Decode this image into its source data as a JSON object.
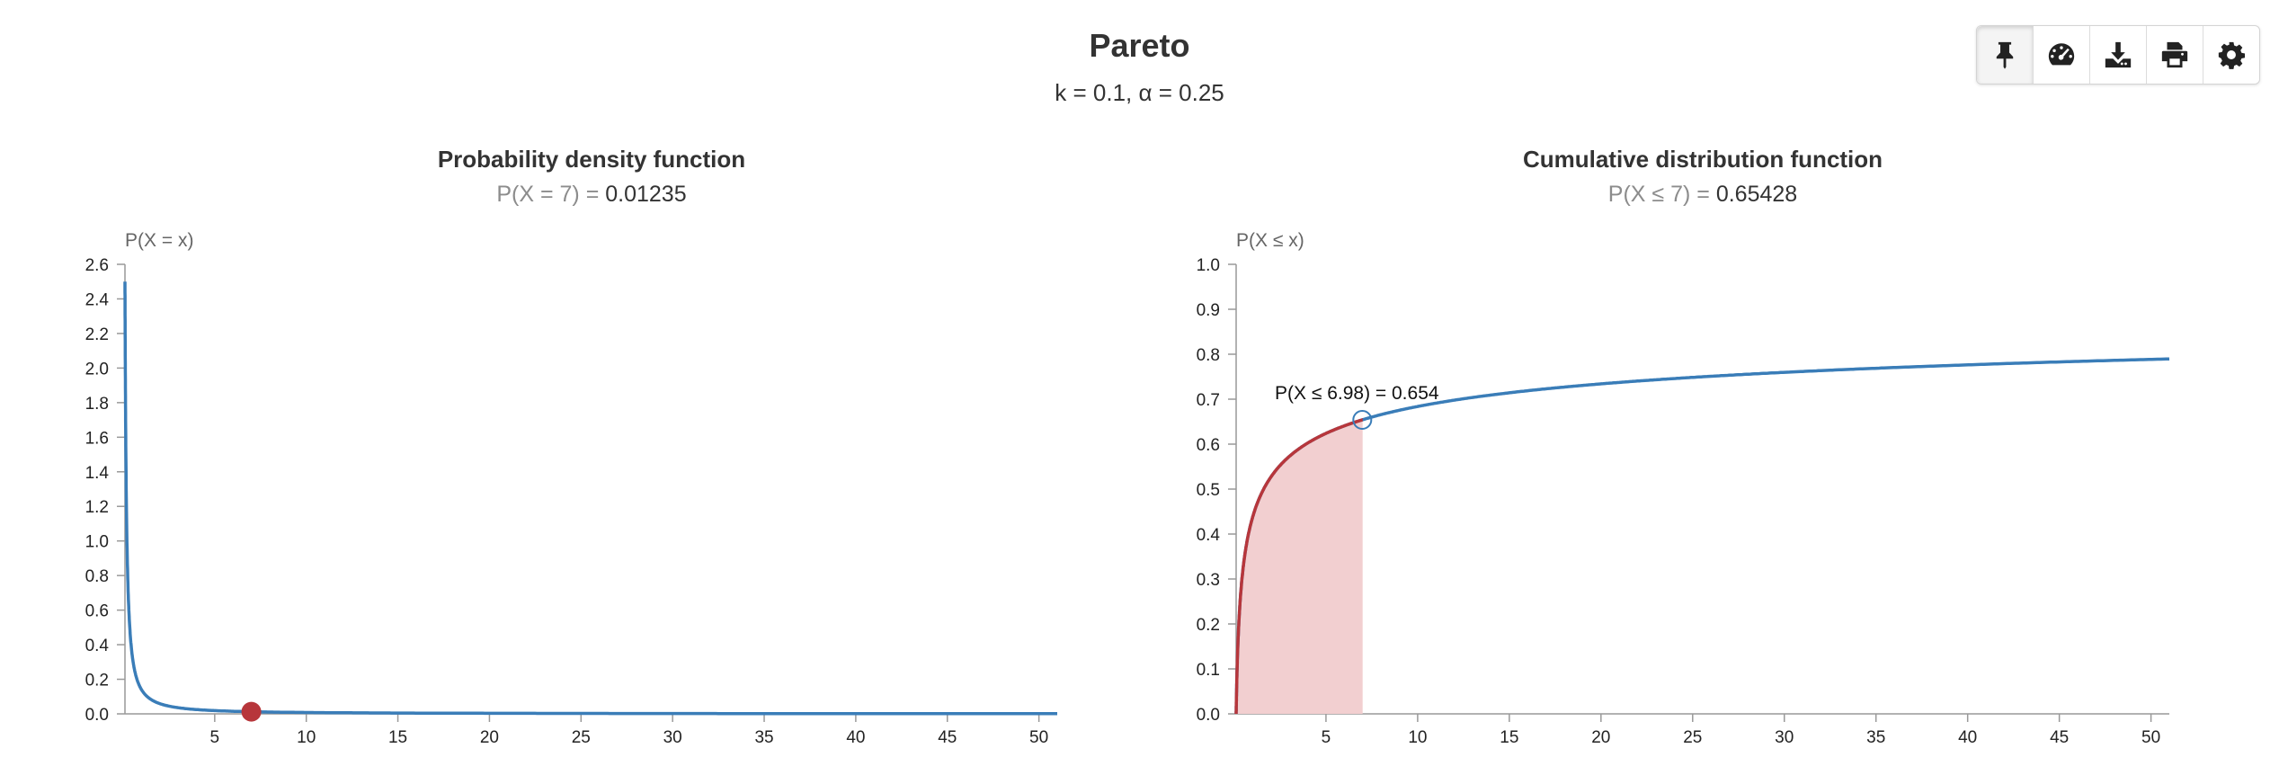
{
  "header": {
    "title": "Pareto",
    "subtitle": "k = 0.1, α = 0.25"
  },
  "toolbar": {
    "buttons": [
      {
        "icon": "pin-icon"
      },
      {
        "icon": "dashboard-icon"
      },
      {
        "icon": "download-icon"
      },
      {
        "icon": "print-icon"
      },
      {
        "icon": "gear-icon"
      }
    ]
  },
  "colors": {
    "curve": "#3a7db8",
    "highlight": "#b7363b",
    "fill": "#f2cfd0",
    "axis": "#999999",
    "text": "#333333",
    "muted": "#8c8c8c"
  },
  "pdf": {
    "title": "Probability density function",
    "stat_label": "P(X = 7) = ",
    "stat_value": "0.01235"
  },
  "cdf": {
    "title": "Cumulative distribution function",
    "stat_label": "P(X ≤ 7) = ",
    "stat_value": "0.65428",
    "annotation": "P(X ≤ 6.98) = 0.654"
  },
  "chart_data": [
    {
      "type": "line",
      "name": "pdf",
      "function": "pareto_pdf",
      "params": {
        "k": 0.1,
        "alpha": 0.25
      },
      "ylabel": "P(X = x)",
      "xlim": [
        0.1,
        51
      ],
      "ylim": [
        0,
        2.6
      ],
      "x_ticks": [
        5,
        10,
        15,
        20,
        25,
        30,
        35,
        40,
        45,
        50
      ],
      "y_ticks": [
        "0.0",
        "0.2",
        "0.4",
        "0.6",
        "0.8",
        "1.0",
        "1.2",
        "1.4",
        "1.6",
        "1.8",
        "2.0",
        "2.2",
        "2.4",
        "2.6"
      ],
      "marker": {
        "x": 7,
        "y": 0.01235
      },
      "grid": false
    },
    {
      "type": "area",
      "name": "cdf",
      "function": "pareto_cdf",
      "params": {
        "k": 0.1,
        "alpha": 0.25
      },
      "ylabel": "P(X ≤ x)",
      "xlim": [
        0.1,
        51
      ],
      "ylim": [
        0,
        1
      ],
      "x_ticks": [
        5,
        10,
        15,
        20,
        25,
        30,
        35,
        40,
        45,
        50
      ],
      "y_ticks": [
        "0.0",
        "0.1",
        "0.2",
        "0.3",
        "0.4",
        "0.5",
        "0.6",
        "0.7",
        "0.8",
        "0.9",
        "1.0"
      ],
      "shade_to": 7,
      "marker": {
        "x": 6.98,
        "y": 0.654
      },
      "grid": false
    }
  ]
}
